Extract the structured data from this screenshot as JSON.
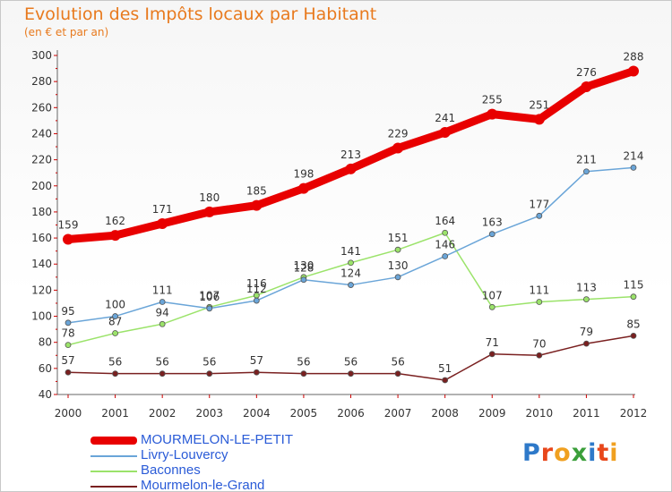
{
  "header": {
    "title": "Evolution des Impôts locaux par Habitant",
    "subtitle": "(en € et par an)"
  },
  "logo": {
    "text": "Proxiti"
  },
  "chart_data": {
    "type": "line",
    "x": [
      "2000",
      "2001",
      "2002",
      "2003",
      "2004",
      "2005",
      "2006",
      "2007",
      "2008",
      "2009",
      "2010",
      "2011",
      "2012"
    ],
    "ylim": [
      40,
      300
    ],
    "yticks": [
      40,
      60,
      80,
      100,
      120,
      140,
      160,
      180,
      200,
      220,
      240,
      260,
      280,
      300
    ],
    "grid": false,
    "legend": "bottom-left",
    "series": [
      {
        "name": "MOURMELON-LE-PETIT",
        "color": "#e80000",
        "values": [
          159,
          162,
          171,
          180,
          185,
          198,
          213,
          229,
          241,
          255,
          251,
          276,
          288
        ]
      },
      {
        "name": "Livry-Louvercy",
        "color": "#6aa5d8",
        "values": [
          95,
          100,
          111,
          106,
          112,
          128,
          124,
          130,
          146,
          163,
          177,
          211,
          214
        ]
      },
      {
        "name": "Baconnes",
        "color": "#9be36a",
        "values": [
          78,
          87,
          94,
          107,
          116,
          130,
          141,
          151,
          164,
          107,
          111,
          113,
          115
        ]
      },
      {
        "name": "Mourmelon-le-Grand",
        "color": "#7a2020",
        "values": [
          57,
          56,
          56,
          56,
          57,
          56,
          56,
          56,
          51,
          71,
          70,
          79,
          85
        ]
      }
    ]
  }
}
